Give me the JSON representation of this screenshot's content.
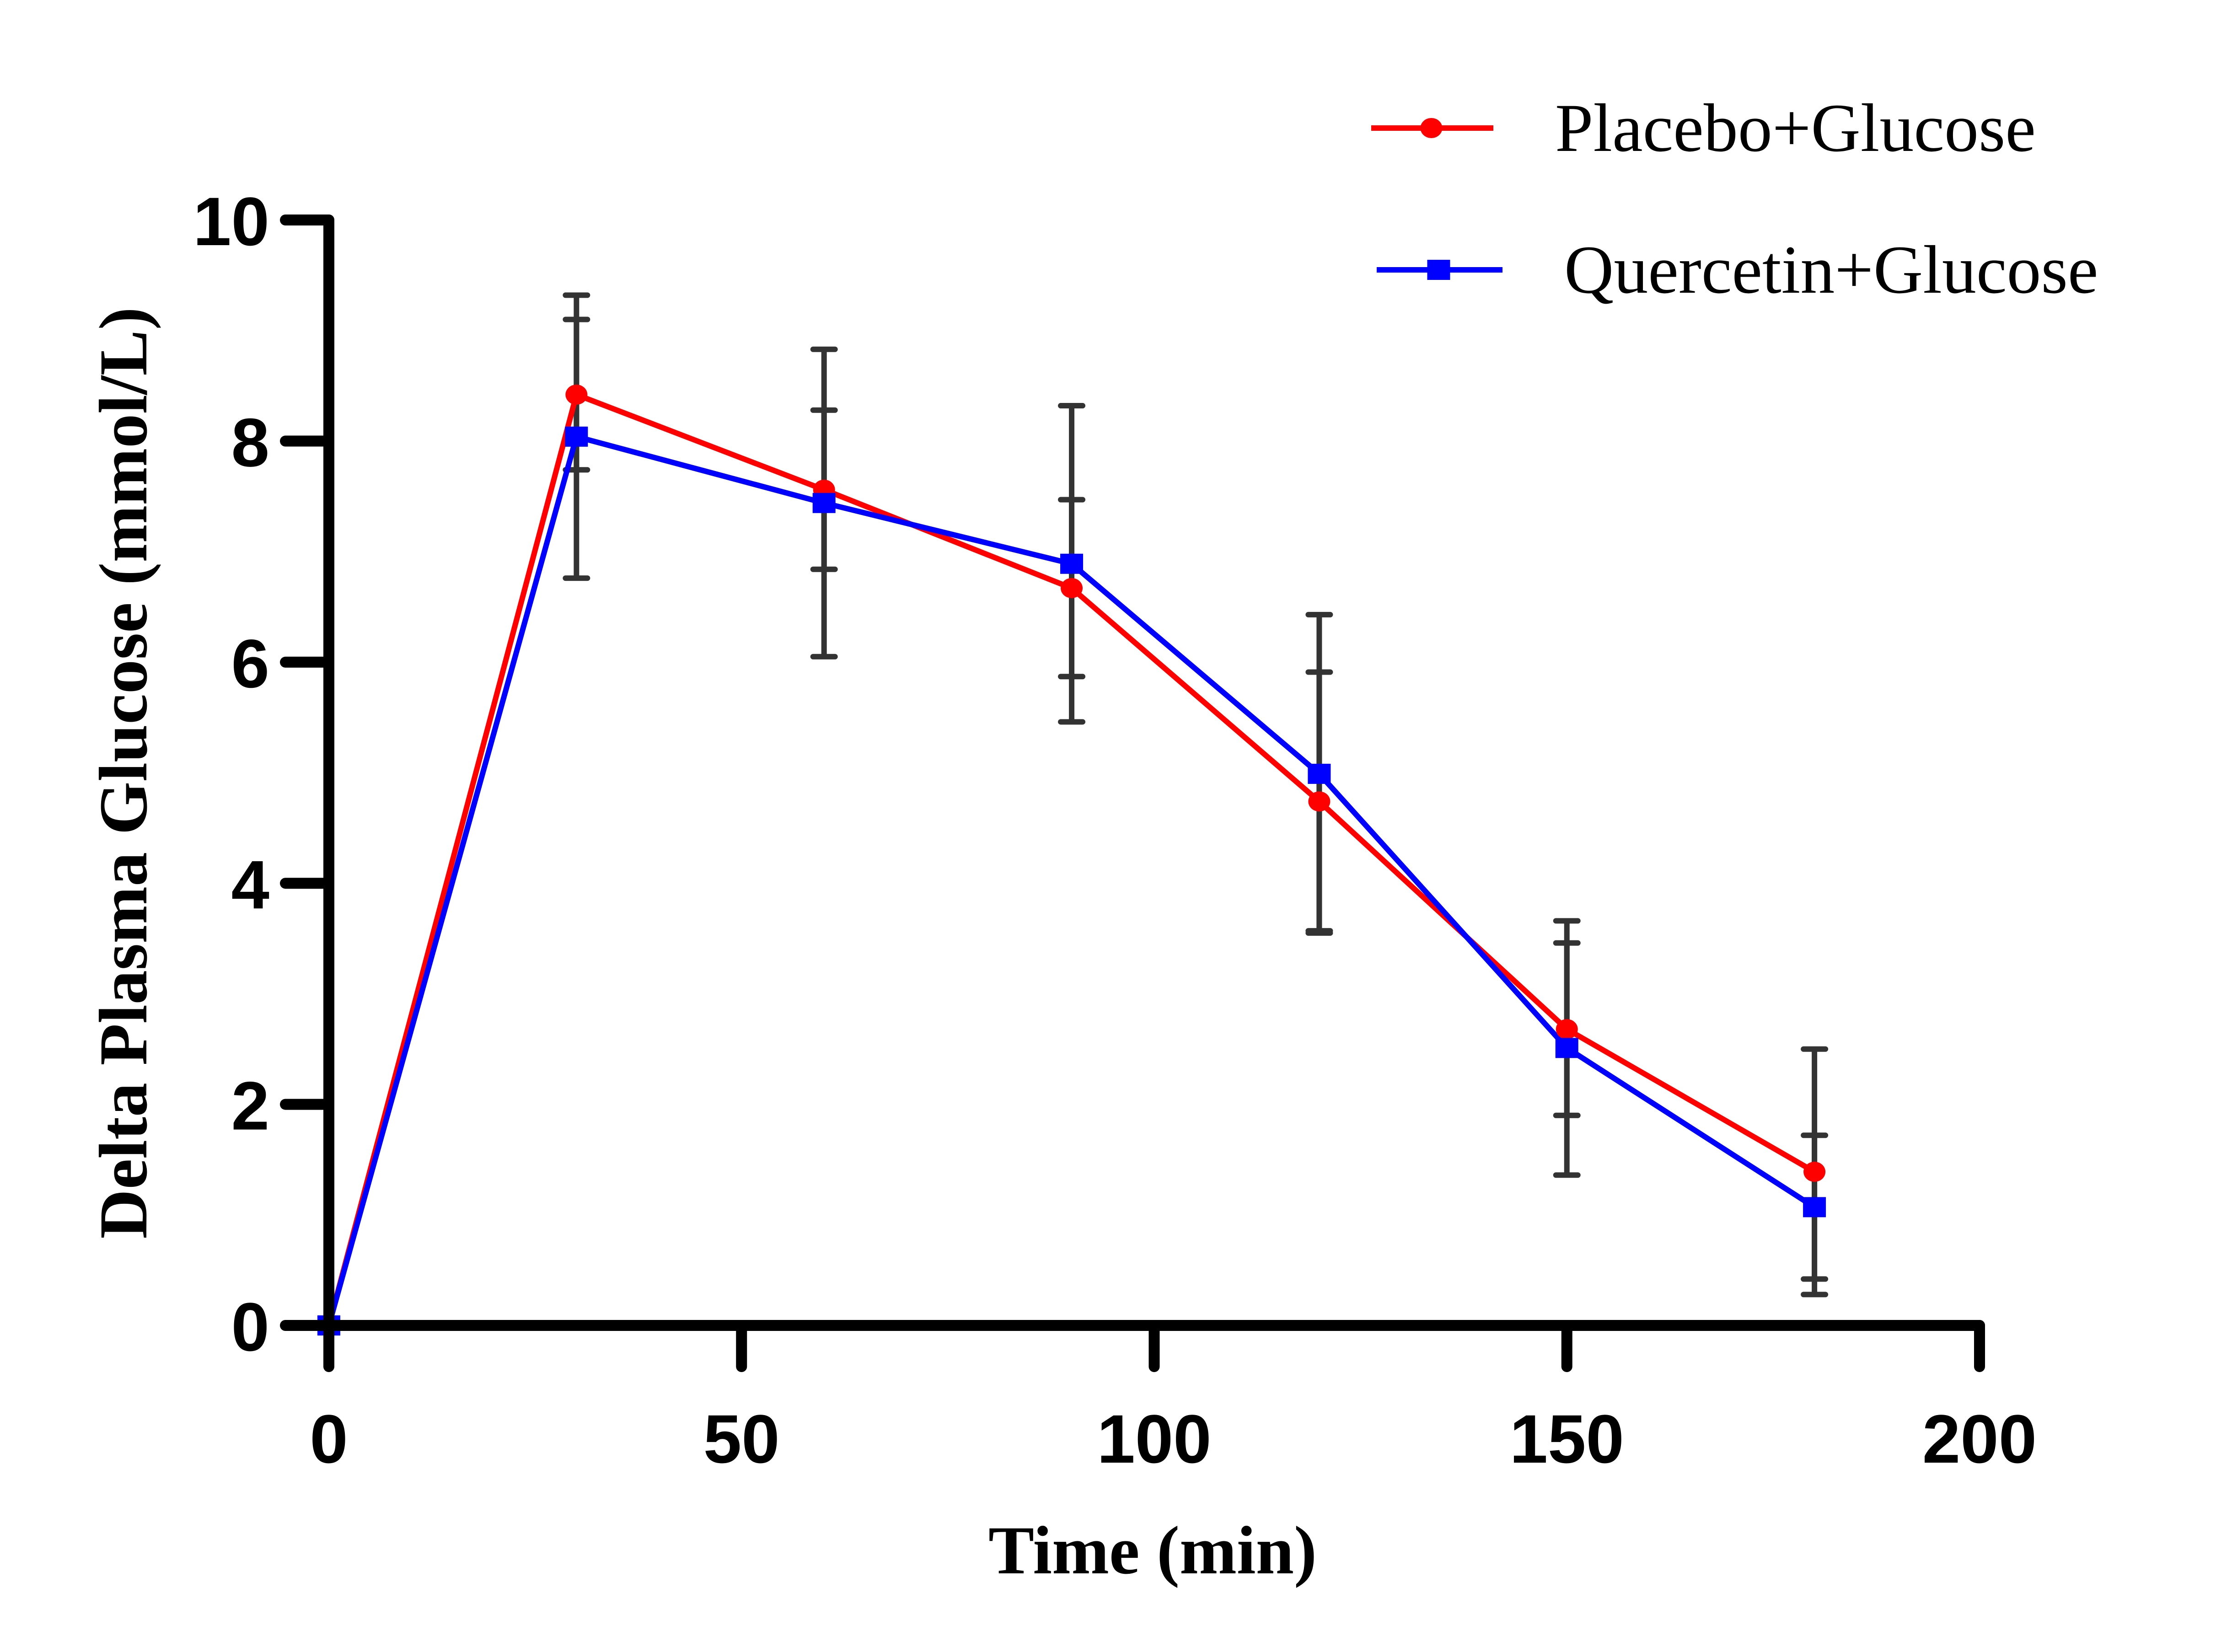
{
  "chart_data": {
    "type": "line",
    "title": "",
    "xlabel": "Time (min)",
    "ylabel": "Delta Plasma Glucose (mmol/L)",
    "xlim": [
      0,
      200
    ],
    "ylim": [
      0,
      10
    ],
    "xticks": [
      0,
      50,
      100,
      150,
      200
    ],
    "yticks": [
      0,
      2,
      4,
      6,
      8,
      10
    ],
    "grid": false,
    "legend_position": "top-right",
    "x": [
      0,
      30,
      60,
      90,
      120,
      150,
      180
    ],
    "series": [
      {
        "name": "Placebo+Glucose",
        "color": "#ff0000",
        "marker": "circle",
        "values": [
          0,
          8.42,
          7.56,
          6.67,
          4.74,
          2.68,
          1.39
        ],
        "error": [
          0,
          0.68,
          0.72,
          0.8,
          1.17,
          0.78,
          1.11
        ]
      },
      {
        "name": "Quercetin+Glucose",
        "color": "#0000ff",
        "marker": "square",
        "values": [
          0,
          8.04,
          7.44,
          6.89,
          4.99,
          2.51,
          1.07
        ],
        "error": [
          0,
          1.28,
          1.39,
          1.43,
          1.44,
          1.15,
          0.65
        ]
      }
    ],
    "error_bar_color": "#333333"
  }
}
